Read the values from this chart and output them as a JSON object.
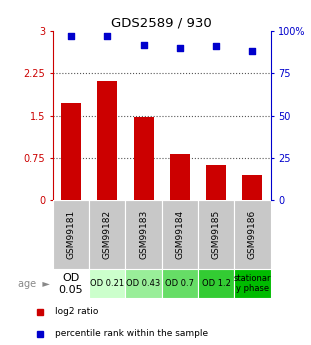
{
  "title": "GDS2589 / 930",
  "samples": [
    "GSM99181",
    "GSM99182",
    "GSM99183",
    "GSM99184",
    "GSM99185",
    "GSM99186"
  ],
  "log2_ratio": [
    1.72,
    2.12,
    1.48,
    0.82,
    0.62,
    0.45
  ],
  "percentile_rank": [
    97,
    97,
    92,
    90,
    91,
    88
  ],
  "ylim_left": [
    0,
    3
  ],
  "ylim_right": [
    0,
    100
  ],
  "yticks_left": [
    0,
    0.75,
    1.5,
    2.25,
    3
  ],
  "yticks_right": [
    0,
    25,
    50,
    75,
    100
  ],
  "ytick_labels_left": [
    "0",
    "0.75",
    "1.5",
    "2.25",
    "3"
  ],
  "ytick_labels_right": [
    "0",
    "25",
    "50",
    "75",
    "100%"
  ],
  "bar_color": "#cc0000",
  "dot_color": "#0000cc",
  "age_labels": [
    "OD\n0.05",
    "OD 0.21",
    "OD 0.43",
    "OD 0.7",
    "OD 1.2",
    "stationar\ny phase"
  ],
  "age_colors": [
    "#ffffff",
    "#ccffcc",
    "#99ee99",
    "#66dd66",
    "#33cc33",
    "#00bb00"
  ],
  "sample_bg_color": "#c8c8c8",
  "legend_red_label": "log2 ratio",
  "legend_blue_label": "percentile rank within the sample",
  "dotted_line_color": "#555555",
  "background_color": "#ffffff"
}
